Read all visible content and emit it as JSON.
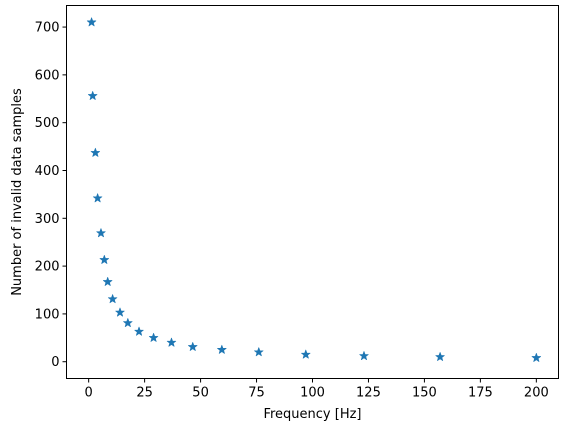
{
  "chart_data": {
    "type": "scatter",
    "title": "",
    "xlabel": "Frequency [Hz]",
    "ylabel": "Number of invalid data samples",
    "xlim": [
      -9.9,
      209.9
    ],
    "ylim": [
      -35.1,
      745.1
    ],
    "xticks": [
      0,
      25,
      50,
      75,
      100,
      125,
      150,
      175,
      200
    ],
    "yticks": [
      0,
      100,
      200,
      300,
      400,
      500,
      600,
      700
    ],
    "grid": false,
    "marker": "star",
    "color": "#1f77b4",
    "series": [
      {
        "x": [
          1.3,
          1.8,
          3.0,
          4.0,
          5.5,
          7.0,
          8.5,
          10.7,
          14.0,
          17.5,
          22.5,
          29.0,
          37.0,
          46.5,
          59.5,
          76.0,
          97.0,
          123.0,
          157.0,
          200.0
        ],
        "y": [
          710,
          556,
          437,
          342,
          269,
          213,
          167,
          131,
          103,
          81,
          63,
          50,
          40,
          31,
          25,
          20,
          15,
          12,
          10,
          8
        ]
      }
    ]
  }
}
